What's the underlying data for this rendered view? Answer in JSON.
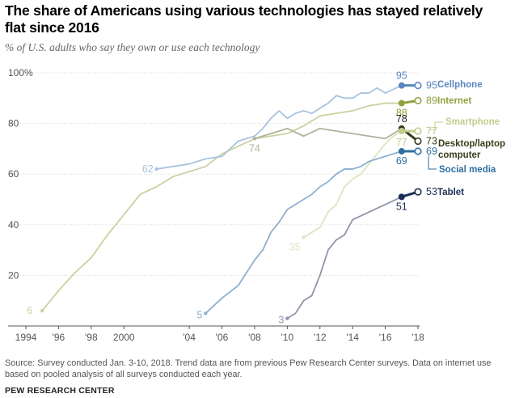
{
  "title": "The share of Americans using various technologies has stayed relatively flat since 2016",
  "subtitle": "% of U.S. adults who say they own or use each technology",
  "source": "Source: Survey conducted Jan. 3-10, 2018. Trend data are from previous Pew Research Center surveys. Data on internet use based on pooled analysis of all surveys conducted each year.",
  "brand": "PEW RESEARCH CENTER",
  "chart_data": {
    "type": "line",
    "title": "The share of Americans using various technologies has stayed relatively flat since 2016",
    "subtitle": "% of U.S. adults who say they own or use each technology",
    "xlim": [
      1994,
      2018
    ],
    "ylim": [
      0,
      100
    ],
    "x_ticks": [
      "1994",
      "'96",
      "'98",
      "2000",
      "'04",
      "'06",
      "'08",
      "'10",
      "'12",
      "'14",
      "'16",
      "'18"
    ],
    "x_tick_values": [
      1994,
      1996,
      1998,
      2000,
      2004,
      2006,
      2008,
      2010,
      2012,
      2014,
      2016,
      2018
    ],
    "y_ticks": [
      "20",
      "40",
      "60",
      "80",
      "100%"
    ],
    "y_tick_values": [
      20,
      40,
      60,
      80,
      100
    ],
    "grid": "horizontal",
    "series": [
      {
        "name": "Internet",
        "color": "#c8d2a0",
        "endpoint_color": "#8fa23e",
        "points": [
          [
            1995,
            6
          ],
          [
            1996,
            14
          ],
          [
            1997,
            21
          ],
          [
            1998,
            27
          ],
          [
            1999,
            36
          ],
          [
            2000,
            44
          ],
          [
            2001,
            52
          ],
          [
            2002,
            55
          ],
          [
            2003,
            59
          ],
          [
            2004,
            61
          ],
          [
            2005,
            63
          ],
          [
            2006,
            68
          ],
          [
            2007,
            71
          ],
          [
            2008,
            74
          ],
          [
            2009,
            75
          ],
          [
            2010,
            76
          ],
          [
            2011,
            79
          ],
          [
            2012,
            83
          ],
          [
            2013,
            84
          ],
          [
            2014,
            85
          ],
          [
            2015,
            87
          ],
          [
            2016,
            88
          ],
          [
            2017,
            88
          ],
          [
            2018,
            89
          ]
        ],
        "labels": [
          {
            "x": 1995,
            "y": 6,
            "text": "6"
          },
          {
            "x": 2017,
            "y": 88,
            "text": "88"
          },
          {
            "x": 2018,
            "y": 89,
            "text": "89"
          }
        ]
      },
      {
        "name": "Cellphone",
        "color": "#a9c3dd",
        "endpoint_color": "#5b87bf",
        "points": [
          [
            2002,
            62
          ],
          [
            2004,
            64
          ],
          [
            2005,
            66
          ],
          [
            2006,
            67
          ],
          [
            2007,
            73
          ],
          [
            2008,
            75
          ],
          [
            2008.5,
            78
          ],
          [
            2009,
            82
          ],
          [
            2009.5,
            85
          ],
          [
            2010,
            82
          ],
          [
            2010.5,
            84
          ],
          [
            2011,
            85
          ],
          [
            2011.5,
            84
          ],
          [
            2012,
            86
          ],
          [
            2012.5,
            88
          ],
          [
            2013,
            91
          ],
          [
            2013.5,
            90
          ],
          [
            2014,
            90
          ],
          [
            2014.5,
            92
          ],
          [
            2015,
            92
          ],
          [
            2015.5,
            94
          ],
          [
            2016,
            92
          ],
          [
            2017,
            95
          ],
          [
            2018,
            95
          ]
        ],
        "labels": [
          {
            "x": 2002,
            "y": 62,
            "text": "62"
          },
          {
            "x": 2017,
            "y": 95,
            "text": "95"
          },
          {
            "x": 2018,
            "y": 95,
            "text": "95"
          }
        ]
      },
      {
        "name": "Desktop/laptop computer",
        "color": "#b4b19a",
        "endpoint_color": "#3a3d1a",
        "points": [
          [
            2008,
            74
          ],
          [
            2009,
            76
          ],
          [
            2010,
            78
          ],
          [
            2011,
            75
          ],
          [
            2012,
            78
          ],
          [
            2013,
            77
          ],
          [
            2014,
            76
          ],
          [
            2015,
            75
          ],
          [
            2016,
            74
          ],
          [
            2017,
            78
          ],
          [
            2018,
            73
          ]
        ],
        "labels": [
          {
            "x": 2008,
            "y": 74,
            "text": "74"
          },
          {
            "x": 2017,
            "y": 78,
            "text": "78"
          },
          {
            "x": 2018,
            "y": 73,
            "text": "73"
          }
        ]
      },
      {
        "name": "Smartphone",
        "color": "#dde4c2",
        "endpoint_color": "#c2cc8e",
        "points": [
          [
            2011,
            35
          ],
          [
            2012,
            39
          ],
          [
            2012.5,
            45
          ],
          [
            2013,
            48
          ],
          [
            2013.5,
            55
          ],
          [
            2014,
            58
          ],
          [
            2014.5,
            60
          ],
          [
            2015,
            64
          ],
          [
            2015.5,
            68
          ],
          [
            2016,
            72
          ],
          [
            2016.5,
            75
          ],
          [
            2017,
            77
          ],
          [
            2018,
            77
          ]
        ],
        "labels": [
          {
            "x": 2011,
            "y": 35,
            "text": "35"
          },
          {
            "x": 2017,
            "y": 77,
            "text": "77"
          },
          {
            "x": 2018,
            "y": 77,
            "text": "77"
          }
        ]
      },
      {
        "name": "Social media",
        "color": "#8cb0d1",
        "endpoint_color": "#2e6ea0",
        "points": [
          [
            2005,
            5
          ],
          [
            2006,
            11
          ],
          [
            2007,
            16
          ],
          [
            2008,
            26
          ],
          [
            2008.5,
            30
          ],
          [
            2009,
            37
          ],
          [
            2009.5,
            41
          ],
          [
            2010,
            46
          ],
          [
            2010.5,
            48
          ],
          [
            2011,
            50
          ],
          [
            2011.5,
            52
          ],
          [
            2012,
            55
          ],
          [
            2012.5,
            57
          ],
          [
            2013,
            60
          ],
          [
            2013.5,
            62
          ],
          [
            2014,
            62
          ],
          [
            2014.5,
            63
          ],
          [
            2015,
            65
          ],
          [
            2016,
            67
          ],
          [
            2017,
            69
          ],
          [
            2018,
            69
          ]
        ],
        "labels": [
          {
            "x": 2005,
            "y": 5,
            "text": "5"
          },
          {
            "x": 2017,
            "y": 69,
            "text": "69"
          },
          {
            "x": 2018,
            "y": 69,
            "text": "69"
          }
        ]
      },
      {
        "name": "Tablet",
        "color": "#8e96a8",
        "endpoint_color": "#1b2f55",
        "points": [
          [
            2010,
            3
          ],
          [
            2010.5,
            5
          ],
          [
            2011,
            10
          ],
          [
            2011.5,
            12
          ],
          [
            2012,
            20
          ],
          [
            2012.5,
            30
          ],
          [
            2013,
            34
          ],
          [
            2013.5,
            36
          ],
          [
            2014,
            42
          ],
          [
            2015,
            45
          ],
          [
            2016,
            48
          ],
          [
            2017,
            51
          ],
          [
            2018,
            53
          ]
        ],
        "labels": [
          {
            "x": 2010,
            "y": 3,
            "text": "3"
          },
          {
            "x": 2017,
            "y": 51,
            "text": "51"
          },
          {
            "x": 2018,
            "y": 53,
            "text": "53"
          }
        ]
      }
    ]
  }
}
